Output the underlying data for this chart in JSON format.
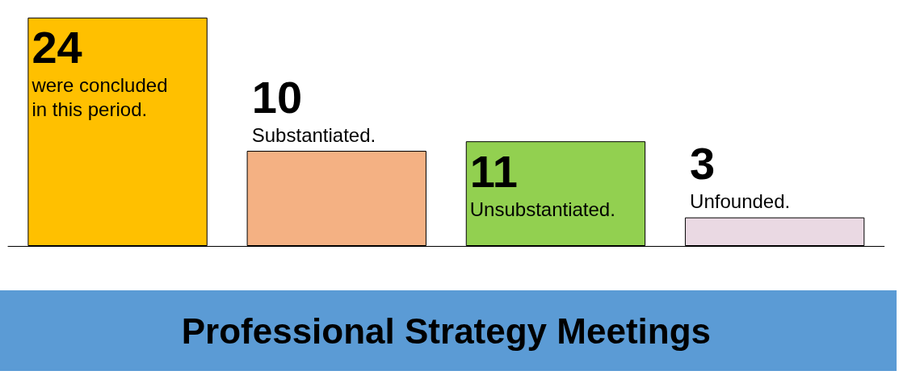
{
  "chart_data": {
    "type": "bar",
    "xlabel": "Professional Strategy Meetings",
    "categories": [
      "were concluded in this period.",
      "Substantiated.",
      "Unsubstantiated.",
      "Unfounded."
    ],
    "values": [
      24,
      10,
      11,
      3
    ],
    "colors": [
      "#ffc000",
      "#f4b183",
      "#92d050",
      "#ead9e3"
    ],
    "data_labels": true
  }
}
